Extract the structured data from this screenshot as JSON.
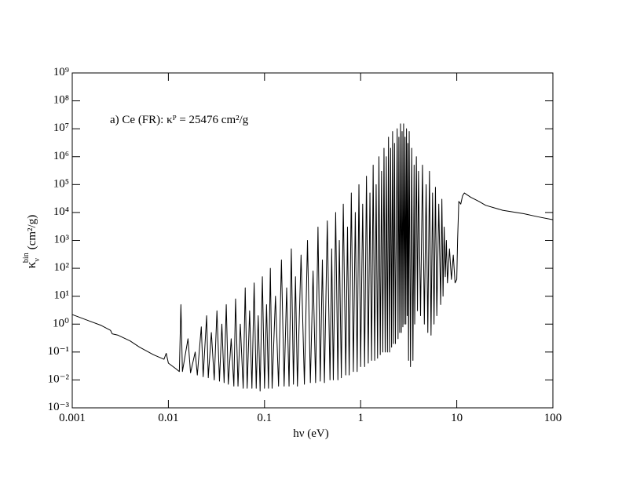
{
  "chart_data": {
    "type": "line",
    "annotation": "a) Ce (FR): κᴾ = 25476 cm²/g",
    "x_label": "hν (eV)",
    "y_label": {
      "symbol": "κ",
      "sub": "ν",
      "sup": "bin",
      "unit": "(cm²/g)"
    },
    "log_x": true,
    "log_y": true,
    "color": "#000000",
    "xlim": [
      0.001,
      100
    ],
    "xticks": [
      0.001,
      0.01,
      0.1,
      1,
      10,
      100
    ],
    "ylim": [
      0.001,
      1000000000
    ],
    "yticks": [
      {
        "value": 0.001,
        "label": "10⁻³"
      },
      {
        "value": 0.01,
        "label": "10⁻²"
      },
      {
        "value": 0.1,
        "label": "10⁻¹"
      },
      {
        "value": 1,
        "label": "10⁰"
      },
      {
        "value": 10,
        "label": "10¹"
      },
      {
        "value": 100,
        "label": "10²"
      },
      {
        "value": 1000,
        "label": "10³"
      },
      {
        "value": 10000,
        "label": "10⁴"
      },
      {
        "value": 100000,
        "label": "10⁵"
      },
      {
        "value": 1000000,
        "label": "10⁶"
      },
      {
        "value": 10000000,
        "label": "10⁷"
      },
      {
        "value": 100000000,
        "label": "10⁸"
      },
      {
        "value": 1000000000,
        "label": "10⁹"
      }
    ],
    "x": [
      0.001,
      0.0015,
      0.002,
      0.0025,
      0.0026,
      0.003,
      0.004,
      0.005,
      0.007,
      0.009,
      0.0095,
      0.01,
      0.012,
      0.013,
      0.0135,
      0.014,
      0.016,
      0.017,
      0.019,
      0.02,
      0.022,
      0.023,
      0.025,
      0.026,
      0.028,
      0.03,
      0.032,
      0.034,
      0.036,
      0.038,
      0.04,
      0.042,
      0.045,
      0.048,
      0.05,
      0.053,
      0.056,
      0.06,
      0.063,
      0.066,
      0.07,
      0.074,
      0.078,
      0.082,
      0.086,
      0.09,
      0.095,
      0.1,
      0.105,
      0.11,
      0.115,
      0.12,
      0.13,
      0.14,
      0.15,
      0.16,
      0.17,
      0.18,
      0.19,
      0.2,
      0.21,
      0.22,
      0.24,
      0.26,
      0.28,
      0.3,
      0.32,
      0.34,
      0.36,
      0.38,
      0.4,
      0.42,
      0.45,
      0.48,
      0.5,
      0.52,
      0.55,
      0.58,
      0.6,
      0.63,
      0.66,
      0.7,
      0.73,
      0.76,
      0.8,
      0.84,
      0.88,
      0.92,
      0.96,
      1,
      1.05,
      1.1,
      1.15,
      1.2,
      1.25,
      1.3,
      1.35,
      1.4,
      1.45,
      1.5,
      1.55,
      1.6,
      1.65,
      1.7,
      1.75,
      1.8,
      1.85,
      1.9,
      1.95,
      2,
      2.05,
      2.1,
      2.15,
      2.2,
      2.25,
      2.3,
      2.4,
      2.45,
      2.5,
      2.55,
      2.6,
      2.65,
      2.7,
      2.75,
      2.8,
      2.85,
      2.9,
      2.95,
      3,
      3.05,
      3.1,
      3.15,
      3.2,
      3.3,
      3.4,
      3.5,
      3.6,
      3.65,
      3.8,
      3.9,
      4,
      4.2,
      4.4,
      4.6,
      4.8,
      5,
      5.2,
      5.4,
      5.6,
      5.8,
      6,
      6.2,
      6.5,
      6.8,
      7,
      7.2,
      7.4,
      7.6,
      7.8,
      8,
      8.4,
      8.8,
      9.2,
      9.6,
      10,
      10.2,
      10.5,
      11,
      11.5,
      12,
      14,
      17,
      20,
      30,
      50,
      70,
      100
    ],
    "values": [
      2.2,
      1.3,
      0.9,
      0.6,
      0.45,
      0.4,
      0.25,
      0.15,
      0.08,
      0.055,
      0.09,
      0.04,
      0.025,
      0.02,
      5,
      0.02,
      0.3,
      0.018,
      0.1,
      0.015,
      0.8,
      0.013,
      2,
      0.012,
      0.5,
      0.01,
      3,
      0.009,
      1,
      0.008,
      5,
      0.007,
      0.3,
      0.006,
      8,
      0.006,
      1,
      0.005,
      20,
      0.005,
      3,
      0.005,
      30,
      0.005,
      2,
      0.004,
      50,
      0.005,
      5,
      0.005,
      100,
      0.005,
      10,
      0.006,
      200,
      0.006,
      20,
      0.006,
      500,
      0.007,
      50,
      0.006,
      300,
      0.007,
      1000,
      0.008,
      80,
      0.008,
      3000,
      0.009,
      200,
      0.008,
      5000,
      0.01,
      500,
      0.01,
      10000,
      0.01,
      1000,
      0.012,
      20000,
      0.015,
      3000,
      0.015,
      50000,
      0.02,
      10000,
      0.02,
      100000,
      0.03,
      20000,
      0.03,
      200000,
      0.04,
      50000,
      0.05,
      500000,
      0.05,
      100000,
      0.06,
      1000000,
      0.08,
      300000,
      0.1,
      2000000,
      0.1,
      1000000,
      0.1,
      5000000,
      0.1,
      2000000,
      0.15,
      8000000,
      0.2,
      3000000,
      0.2,
      10000000,
      0.3,
      5000000,
      0.5,
      15000000,
      0.5,
      8000000,
      0.8,
      15000000,
      1,
      5000000,
      1,
      10000000,
      2,
      3000000,
      0.05,
      8000000,
      0.03,
      2000000,
      0.05,
      500000,
      1,
      1000000,
      3,
      300000,
      2,
      500000,
      1,
      100000,
      0.5,
      300000,
      0.4,
      50000,
      1,
      80000,
      2,
      20000,
      5,
      30000,
      10,
      3000,
      50,
      1000,
      30,
      500,
      40,
      300,
      30,
      40,
      1000,
      25000,
      20000,
      40000,
      50000,
      35000,
      25000,
      18000,
      12000,
      9000,
      7000,
      5500
    ]
  }
}
